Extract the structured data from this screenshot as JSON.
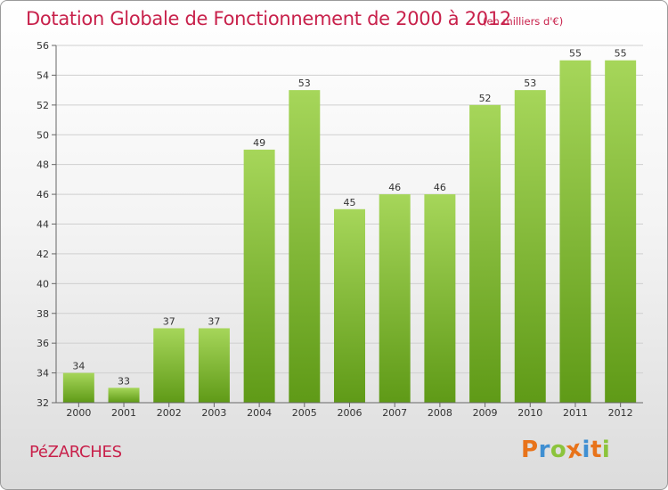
{
  "title": "Dotation Globale de Fonctionnement de 2000 à 2012",
  "unit_note": "(en milliers d'€)",
  "commune": "PéZARCHES",
  "logo": {
    "letters": [
      "P",
      "r",
      "o",
      "x",
      "i",
      "t",
      "i"
    ],
    "colors": [
      "#e8731a",
      "#3f8fd2",
      "#8cc43c",
      "#e8731a",
      "#3f8fd2",
      "#e8731a",
      "#8cc43c"
    ]
  },
  "colors": {
    "bar_light": "#a6d65a",
    "bar_dark": "#5f9a17",
    "title": "#c8214b",
    "grid": "#cfcfcf"
  },
  "chart_data": {
    "type": "bar",
    "title": "Dotation Globale de Fonctionnement de 2000 à 2012",
    "xlabel": "",
    "ylabel": "",
    "categories": [
      "2000",
      "2001",
      "2002",
      "2003",
      "2004",
      "2005",
      "2006",
      "2007",
      "2008",
      "2009",
      "2010",
      "2011",
      "2012"
    ],
    "values": [
      34,
      33,
      37,
      37,
      49,
      53,
      45,
      46,
      46,
      52,
      53,
      55,
      55
    ],
    "ylim": [
      32,
      56
    ],
    "yticks": [
      32,
      34,
      36,
      38,
      40,
      42,
      44,
      46,
      48,
      50,
      52,
      54,
      56
    ],
    "grid": true,
    "legend": "none"
  }
}
